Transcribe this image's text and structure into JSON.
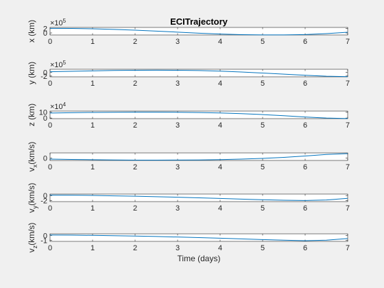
{
  "figure": {
    "title": "ECITrajectory",
    "xlabel": "Time (days)",
    "line_color": "#0072bd",
    "background": "#f0f0f0"
  },
  "chart_data": [
    {
      "type": "line",
      "ylabel": "x (km)",
      "ylabel_sub": "",
      "exponent": "×10",
      "exponent_power": "5",
      "xlim": [
        0,
        7
      ],
      "ylim": [
        -0.9,
        2.4
      ],
      "xticks": [
        "0",
        "1",
        "2",
        "3",
        "4",
        "5",
        "6",
        "7"
      ],
      "yticks": [
        {
          "v": 0,
          "label": "0"
        },
        {
          "v": 2,
          "label": "2"
        }
      ],
      "x": [
        0,
        0.5,
        1,
        1.5,
        2,
        2.5,
        3,
        3.5,
        4,
        4.5,
        5,
        5.5,
        6,
        6.5,
        7
      ],
      "y": [
        2.0,
        1.95,
        1.8,
        1.55,
        1.2,
        0.8,
        0.35,
        -0.1,
        -0.5,
        -0.75,
        -0.85,
        -0.85,
        -0.7,
        -0.3,
        0.3
      ]
    },
    {
      "type": "line",
      "ylabel": "y (km)",
      "ylabel_sub": "",
      "exponent": "×10",
      "exponent_power": "5",
      "xlim": [
        0,
        7
      ],
      "ylim": [
        -2.4,
        1.6
      ],
      "xticks": [
        "0",
        "1",
        "2",
        "3",
        "4",
        "5",
        "6",
        "7"
      ],
      "yticks": [
        {
          "v": 0,
          "label": "0"
        },
        {
          "v": -2,
          "label": "-2"
        }
      ],
      "x": [
        0,
        0.5,
        1,
        1.5,
        2,
        2.5,
        3,
        3.5,
        4,
        4.5,
        5,
        5.5,
        6,
        6.5,
        7
      ],
      "y": [
        0.3,
        0.5,
        0.75,
        0.95,
        1.05,
        1.1,
        1.05,
        0.9,
        0.6,
        0.15,
        -0.4,
        -1.0,
        -1.6,
        -2.1,
        -2.3
      ]
    },
    {
      "type": "line",
      "ylabel": "z (km)",
      "ylabel_sub": "",
      "exponent": "×10",
      "exponent_power": "4",
      "xlim": [
        0,
        7
      ],
      "ylim": [
        -1,
        12
      ],
      "xticks": [
        "0",
        "1",
        "2",
        "3",
        "4",
        "5",
        "6",
        "7"
      ],
      "yticks": [
        {
          "v": 0,
          "label": "0"
        },
        {
          "v": 10,
          "label": "10"
        }
      ],
      "x": [
        0,
        0.5,
        1,
        1.5,
        2,
        2.5,
        3,
        3.5,
        4,
        4.5,
        5,
        5.5,
        6,
        6.5,
        7
      ],
      "y": [
        8.6,
        9.2,
        9.7,
        10.0,
        10.2,
        10.2,
        10.0,
        9.5,
        8.8,
        7.6,
        6.0,
        4.0,
        1.8,
        0.0,
        -0.8
      ]
    },
    {
      "type": "line",
      "ylabel": "v",
      "ylabel_sub": "x",
      "ylabel_unit": "(km/s)",
      "exponent": "",
      "exponent_power": "",
      "xlim": [
        0,
        7
      ],
      "ylim": [
        -0.35,
        0.75
      ],
      "xticks": [
        "0",
        "1",
        "2",
        "3",
        "4",
        "5",
        "6",
        "7"
      ],
      "yticks": [
        {
          "v": 0,
          "label": "0"
        }
      ],
      "x": [
        0,
        0.5,
        1,
        1.5,
        2,
        2.5,
        3,
        3.5,
        4,
        4.5,
        5,
        5.5,
        6,
        6.5,
        7
      ],
      "y": [
        -0.15,
        -0.2,
        -0.24,
        -0.28,
        -0.3,
        -0.3,
        -0.29,
        -0.27,
        -0.22,
        -0.15,
        -0.05,
        0.1,
        0.3,
        0.52,
        0.65
      ]
    },
    {
      "type": "line",
      "ylabel": "v",
      "ylabel_sub": "y",
      "ylabel_unit": "(km/s)",
      "exponent": "",
      "exponent_power": "",
      "xlim": [
        0,
        7
      ],
      "ylim": [
        -2.4,
        0.6
      ],
      "xticks": [
        "0",
        "1",
        "2",
        "3",
        "4",
        "5",
        "6",
        "7"
      ],
      "yticks": [
        {
          "v": 0,
          "label": "0"
        },
        {
          "v": -2,
          "label": "-2"
        }
      ],
      "x": [
        0,
        0.5,
        1,
        1.5,
        2,
        2.5,
        3,
        3.5,
        4,
        4.5,
        5,
        5.5,
        6,
        6.5,
        7
      ],
      "y": [
        0.2,
        0.15,
        0.05,
        -0.1,
        -0.25,
        -0.45,
        -0.65,
        -0.9,
        -1.15,
        -1.4,
        -1.65,
        -1.85,
        -1.95,
        -1.75,
        -1.1
      ]
    },
    {
      "type": "line",
      "ylabel": "v",
      "ylabel_sub": "z",
      "ylabel_unit": "(km/s)",
      "exponent": "",
      "exponent_power": "",
      "xlim": [
        0,
        7
      ],
      "ylim": [
        -1.25,
        0.35
      ],
      "xticks": [
        "0",
        "1",
        "2",
        "3",
        "4",
        "5",
        "6",
        "7"
      ],
      "yticks": [
        {
          "v": 0,
          "label": "0"
        },
        {
          "v": -1,
          "label": "-1"
        }
      ],
      "x": [
        0,
        0.5,
        1,
        1.5,
        2,
        2.5,
        3,
        3.5,
        4,
        4.5,
        5,
        5.5,
        6,
        6.5,
        7
      ],
      "y": [
        0.1,
        0.07,
        0.02,
        -0.05,
        -0.13,
        -0.22,
        -0.33,
        -0.45,
        -0.58,
        -0.72,
        -0.87,
        -1.0,
        -1.1,
        -1.0,
        -0.65
      ]
    }
  ]
}
